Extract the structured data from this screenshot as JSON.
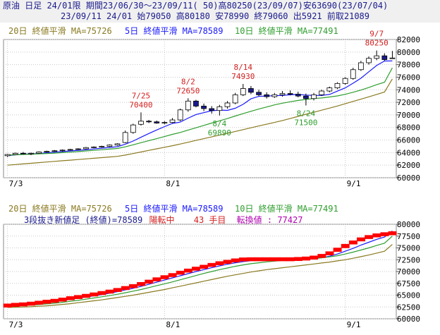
{
  "header": {
    "line1": "原油 日足 24/01限 期間23/06/30～23/09/11( 50)高80250(23/09/07)安63690(23/07/04)",
    "line2": "23/09/11 24/01 始79050 高80180 安78990 終79060 出5921 前取21089"
  },
  "colors": {
    "up_candle": "#ffffff",
    "down_candle": "#1a1a8c",
    "ma5": "#1a1aff",
    "ma10": "#2e9e2e",
    "ma20": "#8a7a20",
    "annot_high": "#d42020",
    "annot_low": "#2e9e2e",
    "brick": "#ff0000",
    "grid": "#c8c8c8"
  },
  "upper": {
    "legend": {
      "ma20": "20日 終値平滑 MA=75726",
      "ma5": "5日 終値平滑 MA=78589",
      "ma10": "10日 終値平滑 MA=77491"
    }
  },
  "lower": {
    "legend": {
      "ma20": "20日 終値平滑 MA=75726",
      "ma5": "5日 終値平滑 MA=78589",
      "ma10": "10日 終値平滑 MA=77491"
    },
    "info": {
      "prefix": "3段抜き新値足 (終値)=78589",
      "status": "陽転中",
      "count": "43 手目",
      "reversal": "転換値 : 77427"
    }
  },
  "chart_data": [
    {
      "type": "candlestick",
      "title": "",
      "x_ticks": [
        "7/3",
        "8/1",
        "9/1"
      ],
      "y_ticks": [
        60000,
        62000,
        64000,
        66000,
        68000,
        70000,
        72000,
        74000,
        76000,
        78000,
        80000,
        82000
      ],
      "ylim": [
        60000,
        82000
      ],
      "grid": true,
      "candles": [
        [
          63500,
          63800,
          63300,
          63700
        ],
        [
          63700,
          64000,
          63690,
          63900
        ],
        [
          63900,
          64100,
          63700,
          63800
        ],
        [
          63800,
          64000,
          63600,
          63900
        ],
        [
          63900,
          64200,
          63800,
          64100
        ],
        [
          64100,
          64300,
          64000,
          64200
        ],
        [
          64200,
          64400,
          64100,
          64300
        ],
        [
          64300,
          64500,
          64100,
          64400
        ],
        [
          64400,
          64600,
          64300,
          64500
        ],
        [
          64500,
          64700,
          64400,
          64600
        ],
        [
          64600,
          64900,
          64500,
          64800
        ],
        [
          64800,
          65000,
          64700,
          64900
        ],
        [
          64900,
          65100,
          64800,
          65000
        ],
        [
          65000,
          65300,
          64900,
          65200
        ],
        [
          65200,
          65500,
          65100,
          65400
        ],
        [
          65600,
          67500,
          65500,
          67200
        ],
        [
          67200,
          68600,
          67000,
          68400
        ],
        [
          68500,
          70400,
          68300,
          69000
        ],
        [
          69000,
          69200,
          68700,
          68900
        ],
        [
          68900,
          69100,
          68600,
          68700
        ],
        [
          68700,
          69000,
          68500,
          68800
        ],
        [
          68800,
          69500,
          68700,
          69200
        ],
        [
          69200,
          71000,
          69000,
          70800
        ],
        [
          70800,
          72650,
          70500,
          72200
        ],
        [
          72200,
          72400,
          71200,
          71400
        ],
        [
          71400,
          71800,
          70600,
          71000
        ],
        [
          71000,
          71400,
          70200,
          70700
        ],
        [
          70700,
          71600,
          69890,
          71300
        ],
        [
          71300,
          72200,
          71000,
          71900
        ],
        [
          71900,
          73500,
          71700,
          73200
        ],
        [
          73200,
          74930,
          73000,
          74200
        ],
        [
          74200,
          74600,
          73300,
          73600
        ],
        [
          73600,
          74000,
          73000,
          73200
        ],
        [
          73200,
          73600,
          72600,
          72900
        ],
        [
          72900,
          73500,
          72700,
          73200
        ],
        [
          73200,
          73800,
          72900,
          73400
        ],
        [
          73400,
          73900,
          73100,
          73300
        ],
        [
          73300,
          73700,
          72800,
          73000
        ],
        [
          73000,
          73400,
          71500,
          72600
        ],
        [
          72600,
          73500,
          72300,
          73200
        ],
        [
          73200,
          74000,
          73000,
          73800
        ],
        [
          73800,
          74500,
          73600,
          74300
        ],
        [
          74300,
          75200,
          74100,
          75000
        ],
        [
          75000,
          76000,
          74800,
          75800
        ],
        [
          75800,
          77500,
          75600,
          77200
        ],
        [
          77200,
          78600,
          77000,
          78300
        ],
        [
          78300,
          79300,
          78000,
          79000
        ],
        [
          79000,
          80250,
          78700,
          79400
        ],
        [
          79400,
          79800,
          78600,
          78800
        ],
        [
          79050,
          80180,
          78990,
          79060
        ]
      ],
      "ma": [
        {
          "name": "5日",
          "values": [
            63500,
            63650,
            63750,
            63800,
            63840,
            63980,
            64060,
            64160,
            64260,
            64360,
            64460,
            64580,
            64700,
            64820,
            64940,
            65340,
            65840,
            66440,
            67040,
            67600,
            68140,
            68640,
            68860,
            69480,
            70060,
            70360,
            70660,
            70760,
            70720,
            71060,
            71680,
            72560,
            72950,
            73000,
            73060,
            73100,
            73200,
            73260,
            73160,
            73100,
            73100,
            73260,
            73780,
            74300,
            75040,
            75840,
            76860,
            77860,
            78580,
            78589
          ]
        },
        {
          "name": "10日",
          "values": [
            63600,
            63650,
            63700,
            63750,
            63800,
            63860,
            63920,
            64000,
            64080,
            64160,
            64260,
            64360,
            64460,
            64560,
            64660,
            64920,
            65240,
            65580,
            65900,
            66220,
            66560,
            66900,
            67210,
            67590,
            67950,
            68330,
            68700,
            69060,
            69420,
            69820,
            70200,
            70570,
            70930,
            71260,
            71590,
            71860,
            72090,
            72300,
            72460,
            72600,
            72700,
            72850,
            73020,
            73280,
            73600,
            73950,
            74360,
            74800,
            75200,
            77491
          ]
        },
        {
          "name": "20日",
          "values": [
            62000,
            62100,
            62200,
            62300,
            62400,
            62500,
            62600,
            62700,
            62800,
            62900,
            63000,
            63100,
            63200,
            63300,
            63400,
            63600,
            63850,
            64100,
            64350,
            64600,
            64850,
            65100,
            65360,
            65650,
            65940,
            66220,
            66500,
            66780,
            67060,
            67360,
            67650,
            67950,
            68240,
            68520,
            68800,
            69100,
            69420,
            69760,
            70100,
            70420,
            70750,
            71080,
            71420,
            71780,
            72140,
            72500,
            72880,
            73260,
            73640,
            75726
          ]
        }
      ],
      "annotations": [
        {
          "label": "7/25",
          "value": 70400,
          "kind": "high"
        },
        {
          "label": "8/2",
          "value": 72650,
          "kind": "high"
        },
        {
          "label": "8/14",
          "value": 74930,
          "kind": "high"
        },
        {
          "label": "9/7",
          "value": 80250,
          "kind": "high"
        },
        {
          "label": "8/4",
          "value": 69890,
          "kind": "low"
        },
        {
          "label": "8/24",
          "value": 71500,
          "kind": "low"
        }
      ]
    },
    {
      "type": "renko",
      "title": "3段抜き新値足 (終値)",
      "x_ticks": [
        "7/3",
        "8/1",
        "9/1"
      ],
      "y_ticks": [
        60000,
        62500,
        65000,
        67500,
        70000,
        72500,
        75000,
        77500,
        80000
      ],
      "ylim": [
        60000,
        80000
      ],
      "grid": true,
      "bricks": [
        62900,
        63000,
        63100,
        63300,
        63500,
        63700,
        63900,
        64200,
        64500,
        64700,
        65000,
        65300,
        65600,
        65900,
        66300,
        66700,
        67100,
        67600,
        68100,
        68600,
        69000,
        69500,
        70000,
        70400,
        70800,
        71200,
        71600,
        71900,
        72200,
        72500,
        72600,
        72600,
        72600,
        72600,
        72600,
        72600,
        72600,
        72700,
        72800,
        73100,
        73500,
        74200,
        75000,
        75800,
        76500,
        77100,
        77500,
        77800,
        78000,
        78200
      ],
      "ma": [
        {
          "name": "5日",
          "values": [
            62900,
            62950,
            63000,
            63100,
            63250,
            63450,
            63650,
            63850,
            64100,
            64350,
            64600,
            64850,
            65100,
            65400,
            65750,
            66100,
            66450,
            66850,
            67300,
            67750,
            68200,
            68650,
            69100,
            69550,
            70000,
            70400,
            70800,
            71200,
            71550,
            71850,
            72100,
            72300,
            72450,
            72550,
            72600,
            72600,
            72600,
            72620,
            72660,
            72760,
            72940,
            73240,
            73700,
            74300,
            74900,
            75600,
            76200,
            76800,
            77300,
            78589
          ]
        },
        {
          "name": "10日",
          "values": [
            62700,
            62750,
            62800,
            62900,
            63000,
            63150,
            63300,
            63500,
            63700,
            63900,
            64150,
            64400,
            64650,
            64900,
            65200,
            65500,
            65850,
            66200,
            66600,
            67000,
            67400,
            67800,
            68250,
            68700,
            69150,
            69600,
            70000,
            70400,
            70750,
            71100,
            71400,
            71650,
            71850,
            72050,
            72200,
            72350,
            72450,
            72550,
            72650,
            72750,
            72900,
            73100,
            73350,
            73700,
            74100,
            74550,
            75000,
            75500,
            76000,
            77491
          ]
        },
        {
          "name": "20日",
          "values": [
            62400,
            62450,
            62500,
            62550,
            62650,
            62750,
            62900,
            63050,
            63200,
            63400,
            63600,
            63800,
            64000,
            64250,
            64500,
            64750,
            65000,
            65300,
            65600,
            65900,
            66200,
            66550,
            66900,
            67250,
            67600,
            67950,
            68300,
            68650,
            69000,
            69300,
            69600,
            69900,
            70150,
            70400,
            70600,
            70800,
            71000,
            71200,
            71400,
            71600,
            71800,
            72000,
            72250,
            72500,
            72800,
            73150,
            73500,
            73900,
            74300,
            75726
          ]
        }
      ]
    }
  ]
}
